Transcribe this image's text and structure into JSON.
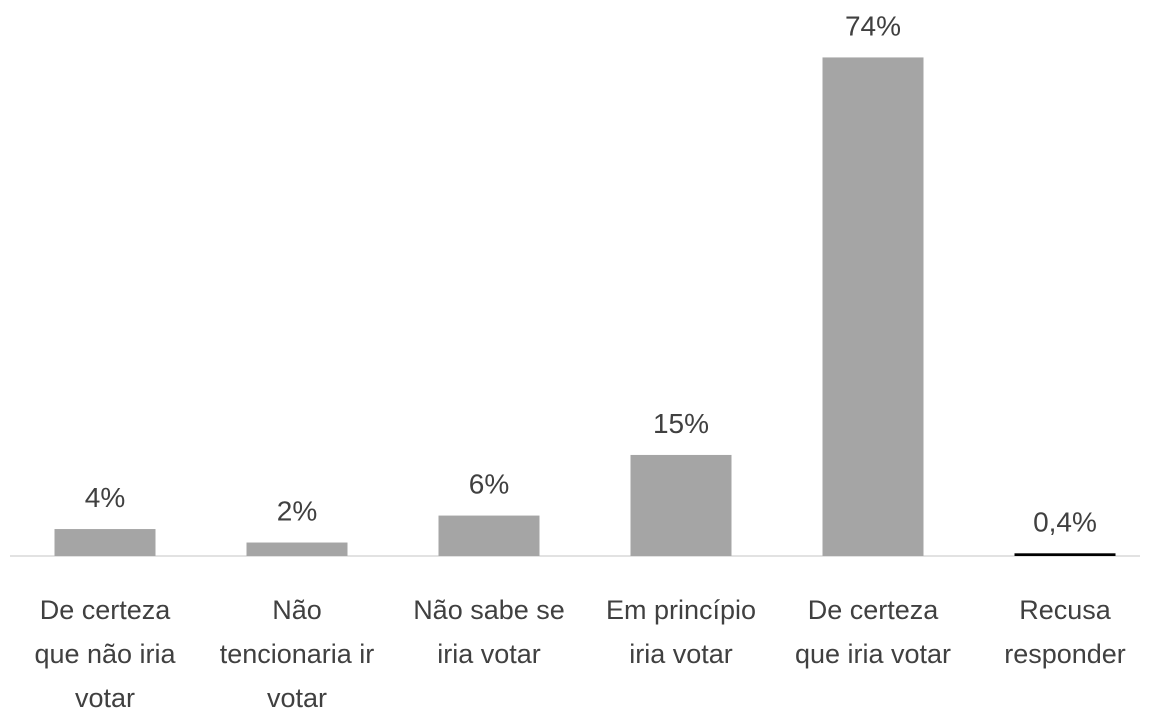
{
  "chart_data": {
    "type": "bar",
    "categories": [
      "De certeza que não iria votar",
      "Não tencionaria ir votar",
      "Não sabe se iria votar",
      "Em princípio iria votar",
      "De certeza que iria votar",
      "Recusa responder"
    ],
    "values": [
      4,
      2,
      6,
      15,
      74,
      0.4
    ],
    "value_labels": [
      "4%",
      "2%",
      "6%",
      "15%",
      "74%",
      "0,4%"
    ],
    "colors": [
      "#a5a5a5",
      "#a5a5a5",
      "#a5a5a5",
      "#a5a5a5",
      "#a5a5a5",
      "#000000"
    ],
    "ylim": [
      0,
      80
    ]
  }
}
